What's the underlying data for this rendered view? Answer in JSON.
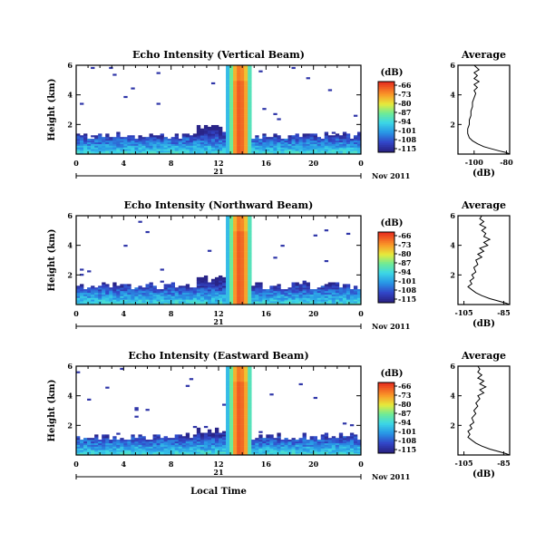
{
  "chart_data": [
    {
      "type": "heatmap",
      "title": "Echo Intensity (Vertical Beam)",
      "ylabel": "Height (km)",
      "xticks": [
        "0",
        "4",
        "8",
        "12",
        "16",
        "20",
        "0"
      ],
      "xlim": [
        0,
        24
      ],
      "yticks": [
        "2",
        "4",
        "6"
      ],
      "ylim": [
        0,
        6
      ],
      "date_day": "21",
      "date_month": "Nov 2011",
      "colorbar": {
        "title": "(dB)",
        "ticks": [
          "-66",
          "-73",
          "-80",
          "-87",
          "-94",
          "-101",
          "-108",
          "-115"
        ],
        "range": [
          -115,
          -66
        ]
      },
      "profile": {
        "title": "Average",
        "xlabel": "(dB)",
        "xticks": [
          "-100",
          "-80"
        ],
        "xlim": [
          -110,
          -78
        ],
        "yticks": [
          "2",
          "4",
          "6"
        ],
        "points": [
          [
            -78,
            0.0
          ],
          [
            -80,
            0.1
          ],
          [
            -84,
            0.2
          ],
          [
            -89,
            0.35
          ],
          [
            -94,
            0.5
          ],
          [
            -98,
            0.7
          ],
          [
            -101,
            0.9
          ],
          [
            -103,
            1.1
          ],
          [
            -104,
            1.4
          ],
          [
            -104,
            1.7
          ],
          [
            -103,
            2.0
          ],
          [
            -103,
            2.3
          ],
          [
            -102,
            2.6
          ],
          [
            -102,
            2.9
          ],
          [
            -101,
            3.2
          ],
          [
            -101,
            3.5
          ],
          [
            -100,
            3.8
          ],
          [
            -99,
            4.1
          ],
          [
            -100,
            4.3
          ],
          [
            -98,
            4.5
          ],
          [
            -100,
            4.7
          ],
          [
            -97,
            4.9
          ],
          [
            -100,
            5.1
          ],
          [
            -98,
            5.3
          ],
          [
            -100,
            5.5
          ],
          [
            -97,
            5.7
          ],
          [
            -99,
            5.9
          ],
          [
            -100,
            6.0
          ]
        ]
      }
    },
    {
      "type": "heatmap",
      "title": "Echo Intensity (Northward Beam)",
      "ylabel": "Height (km)",
      "xticks": [
        "0",
        "4",
        "8",
        "12",
        "16",
        "20",
        "0"
      ],
      "xlim": [
        0,
        24
      ],
      "yticks": [
        "2",
        "4",
        "6"
      ],
      "ylim": [
        0,
        6
      ],
      "date_day": "21",
      "date_month": "Nov 2011",
      "colorbar": {
        "title": "(dB)",
        "ticks": [
          "-66",
          "-73",
          "-80",
          "-87",
          "-94",
          "-101",
          "-108",
          "-115"
        ],
        "range": [
          -115,
          -66
        ]
      },
      "profile": {
        "title": "Average",
        "xlabel": "(dB)",
        "xticks": [
          "-105",
          "-85"
        ],
        "xlim": [
          -108,
          -82
        ],
        "yticks": [
          "2",
          "4",
          "6"
        ],
        "points": [
          [
            -82,
            0.0
          ],
          [
            -84,
            0.1
          ],
          [
            -88,
            0.25
          ],
          [
            -92,
            0.4
          ],
          [
            -96,
            0.6
          ],
          [
            -99,
            0.8
          ],
          [
            -101,
            1.0
          ],
          [
            -103,
            1.2
          ],
          [
            -101,
            1.4
          ],
          [
            -102,
            1.6
          ],
          [
            -100,
            1.8
          ],
          [
            -101,
            2.0
          ],
          [
            -99,
            2.2
          ],
          [
            -100,
            2.5
          ],
          [
            -98,
            2.7
          ],
          [
            -99,
            3.0
          ],
          [
            -96,
            3.2
          ],
          [
            -98,
            3.4
          ],
          [
            -95,
            3.6
          ],
          [
            -97,
            3.8
          ],
          [
            -93,
            4.0
          ],
          [
            -95,
            4.2
          ],
          [
            -92,
            4.4
          ],
          [
            -95,
            4.6
          ],
          [
            -94,
            4.8
          ],
          [
            -96,
            5.0
          ],
          [
            -94,
            5.2
          ],
          [
            -97,
            5.4
          ],
          [
            -95,
            5.6
          ],
          [
            -97,
            5.8
          ],
          [
            -96,
            6.0
          ]
        ]
      }
    },
    {
      "type": "heatmap",
      "title": "Echo Intensity (Eastward Beam)",
      "ylabel": "Height (km)",
      "xlabel": "Local Time",
      "xticks": [
        "0",
        "4",
        "8",
        "12",
        "16",
        "20",
        "0"
      ],
      "xlim": [
        0,
        24
      ],
      "yticks": [
        "2",
        "4",
        "6"
      ],
      "ylim": [
        0,
        6
      ],
      "date_day": "21",
      "date_month": "Nov 2011",
      "colorbar": {
        "title": "(dB)",
        "ticks": [
          "-66",
          "-73",
          "-80",
          "-87",
          "-94",
          "-101",
          "-108",
          "-115"
        ],
        "range": [
          -115,
          -66
        ]
      },
      "profile": {
        "title": "Average",
        "xlabel": "(dB)",
        "xticks": [
          "-105",
          "-85"
        ],
        "xlim": [
          -108,
          -82
        ],
        "yticks": [
          "2",
          "4",
          "6"
        ],
        "points": [
          [
            -82,
            0.0
          ],
          [
            -84,
            0.1
          ],
          [
            -88,
            0.25
          ],
          [
            -92,
            0.4
          ],
          [
            -96,
            0.6
          ],
          [
            -99,
            0.8
          ],
          [
            -101,
            1.0
          ],
          [
            -103,
            1.2
          ],
          [
            -102,
            1.4
          ],
          [
            -103,
            1.6
          ],
          [
            -101,
            1.8
          ],
          [
            -102,
            2.0
          ],
          [
            -100,
            2.2
          ],
          [
            -101,
            2.5
          ],
          [
            -99,
            2.8
          ],
          [
            -100,
            3.0
          ],
          [
            -98,
            3.3
          ],
          [
            -99,
            3.5
          ],
          [
            -97,
            3.8
          ],
          [
            -98,
            4.0
          ],
          [
            -95,
            4.2
          ],
          [
            -97,
            4.4
          ],
          [
            -94,
            4.6
          ],
          [
            -97,
            4.8
          ],
          [
            -95,
            5.0
          ],
          [
            -98,
            5.2
          ],
          [
            -96,
            5.4
          ],
          [
            -98,
            5.6
          ],
          [
            -97,
            5.8
          ],
          [
            -98,
            6.0
          ]
        ]
      }
    }
  ]
}
